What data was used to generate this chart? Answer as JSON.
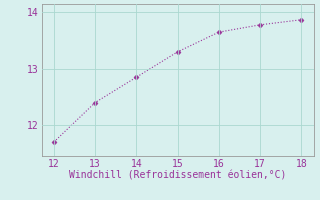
{
  "x": [
    12,
    13,
    14,
    15,
    16,
    17,
    18
  ],
  "y": [
    11.7,
    12.4,
    12.85,
    13.3,
    13.65,
    13.78,
    13.87
  ],
  "line_color": "#993399",
  "marker": "D",
  "marker_size": 2.5,
  "line_width": 0.8,
  "line_style": "dotted",
  "xlabel": "Windchill (Refroidissement éolien,°C)",
  "xlabel_color": "#993399",
  "xlabel_fontsize": 7,
  "xlim": [
    11.7,
    18.3
  ],
  "ylim": [
    11.45,
    14.15
  ],
  "xticks": [
    12,
    13,
    14,
    15,
    16,
    17,
    18
  ],
  "yticks": [
    12,
    13,
    14
  ],
  "tick_color": "#993399",
  "tick_fontsize": 7,
  "grid_color": "#aad8d0",
  "background_color": "#d8f0ee",
  "spine_color": "#999999"
}
